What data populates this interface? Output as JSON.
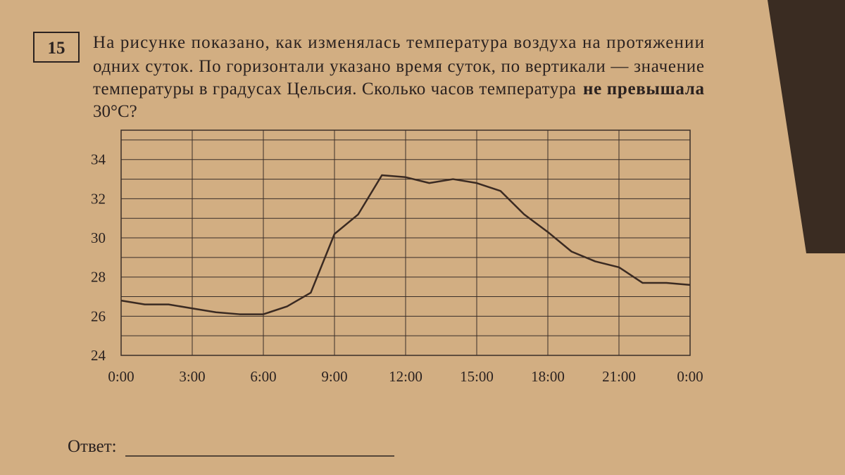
{
  "problem": {
    "number": "15",
    "lines": [
      "На рисунке показано, как изменялась температура воздуха на протяжении",
      "одних суток. По горизонтали указано время суток, по вертикали — значение",
      "температуры в градусах Цельсия. Сколько часов температура"
    ],
    "emphasis": "не превышала",
    "last_line": "30°C?",
    "answer_label": "Ответ:"
  },
  "chart_data": {
    "type": "line",
    "x": [
      0,
      1,
      2,
      3,
      4,
      5,
      6,
      7,
      8,
      9,
      10,
      11,
      12,
      13,
      14,
      15,
      16,
      17,
      18,
      19,
      20,
      21,
      22,
      23,
      24
    ],
    "series": [
      {
        "color": "#3a2a22",
        "values": [
          26.8,
          26.6,
          26.6,
          26.4,
          26.2,
          26.1,
          26.1,
          26.5,
          27.2,
          30.2,
          31.2,
          33.2,
          33.1,
          32.8,
          33.0,
          32.8,
          32.4,
          31.2,
          30.3,
          29.3,
          28.8,
          28.5,
          27.7,
          27.7,
          27.6
        ]
      }
    ],
    "xlim": [
      0,
      24
    ],
    "xticks": [
      {
        "value": 0,
        "label": "0:00"
      },
      {
        "value": 3,
        "label": "3:00"
      },
      {
        "value": 6,
        "label": "6:00"
      },
      {
        "value": 9,
        "label": "9:00"
      },
      {
        "value": 12,
        "label": "12:00"
      },
      {
        "value": 15,
        "label": "15:00"
      },
      {
        "value": 18,
        "label": "18:00"
      },
      {
        "value": 21,
        "label": "21:00"
      },
      {
        "value": 24,
        "label": "0:00"
      }
    ],
    "ylim": [
      24,
      35.5
    ],
    "yticks": [
      24,
      26,
      28,
      30,
      32,
      34
    ],
    "ygrid": [
      25,
      27,
      29,
      31,
      33,
      35
    ],
    "grid": true
  }
}
